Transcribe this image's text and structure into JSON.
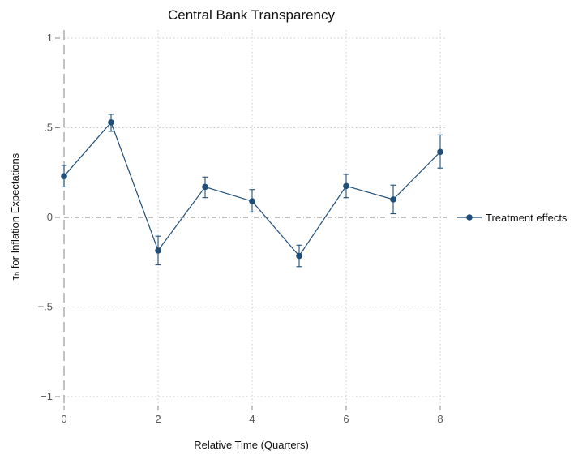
{
  "chart_data": {
    "type": "line",
    "title": "Central Bank Transparency",
    "xlabel": "Relative Time (Quarters)",
    "ylabel": "τₕ for Inflation Expectations",
    "xlim": [
      0,
      8
    ],
    "ylim": [
      -1,
      1
    ],
    "x_ticks": [
      0,
      2,
      4,
      6,
      8
    ],
    "x_tick_labels": [
      "0",
      "2",
      "4",
      "6",
      "8"
    ],
    "y_ticks": [
      -1,
      -0.5,
      0,
      0.5,
      1
    ],
    "y_tick_labels": [
      "−1",
      "−.5",
      "0",
      ".5",
      "1"
    ],
    "grid": true,
    "legend_position": "right",
    "reference_lines": {
      "y": 0,
      "x": 0
    },
    "series": [
      {
        "name": "Treatment effects",
        "x": [
          0,
          1,
          2,
          3,
          4,
          5,
          6,
          7,
          8
        ],
        "y": [
          0.23,
          0.53,
          -0.185,
          0.17,
          0.09,
          -0.215,
          0.175,
          0.1,
          0.365
        ],
        "ci_low": [
          0.17,
          0.48,
          -0.265,
          0.11,
          0.03,
          -0.275,
          0.11,
          0.02,
          0.275
        ],
        "ci_high": [
          0.29,
          0.575,
          -0.105,
          0.225,
          0.155,
          -0.155,
          0.24,
          0.18,
          0.46
        ]
      }
    ],
    "colors": {
      "series": "#1f4e79",
      "grid": "#c8c8c8",
      "refline": "#999999",
      "axis": "#888888"
    }
  }
}
